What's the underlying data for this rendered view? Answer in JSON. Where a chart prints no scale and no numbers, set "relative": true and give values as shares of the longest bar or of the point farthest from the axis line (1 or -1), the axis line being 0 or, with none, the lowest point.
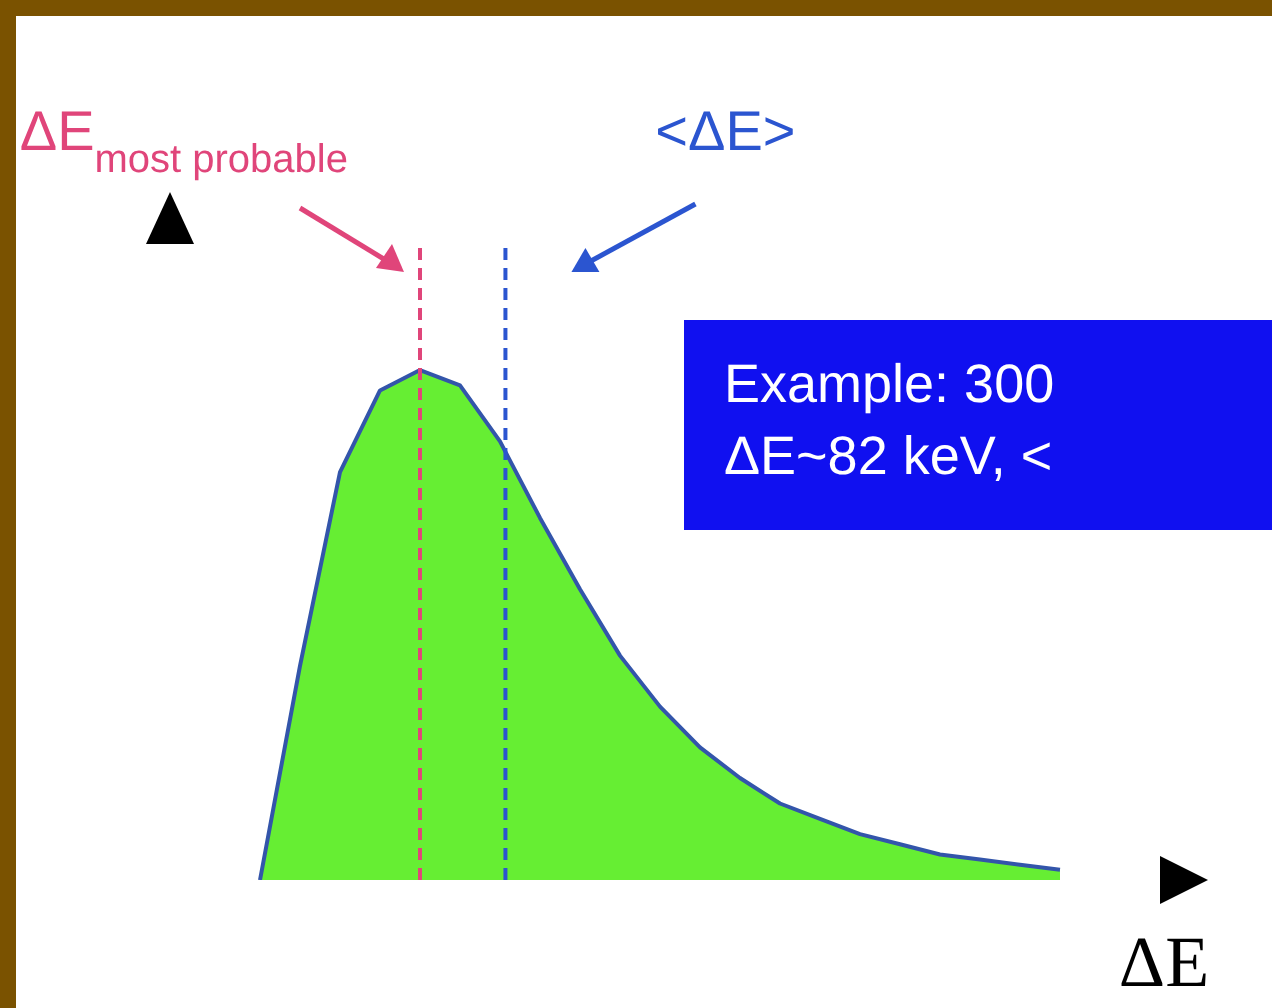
{
  "chart_data": {
    "type": "area",
    "relative": true,
    "xlabel": "ΔE",
    "categories": [
      null,
      null,
      null,
      null,
      null,
      null,
      null,
      null,
      null,
      null,
      null,
      null,
      null,
      null,
      null,
      null,
      null,
      null,
      null,
      null,
      null
    ],
    "series": [
      {
        "color": "#66ee33",
        "values": [
          0,
          0.42,
          0.8,
          0.96,
          1,
          0.97,
          0.86,
          0.71,
          0.57,
          0.44,
          0.34,
          0.26,
          0.2,
          0.15,
          0.12,
          0.09,
          0.07,
          0.05,
          0.04,
          0.03,
          0.02
        ]
      }
    ],
    "ref_lines": [
      {
        "axis": "x",
        "label": "ΔE$_{most probable}$",
        "color": "#e0457a",
        "line_style": "dashed"
      },
      {
        "axis": "x",
        "label": "<ΔE>",
        "color": "#2b55d0",
        "line_style": "dashed"
      }
    ],
    "annotations": [
      "Example: 300\nΔE~82 keV, <"
    ]
  }
}
